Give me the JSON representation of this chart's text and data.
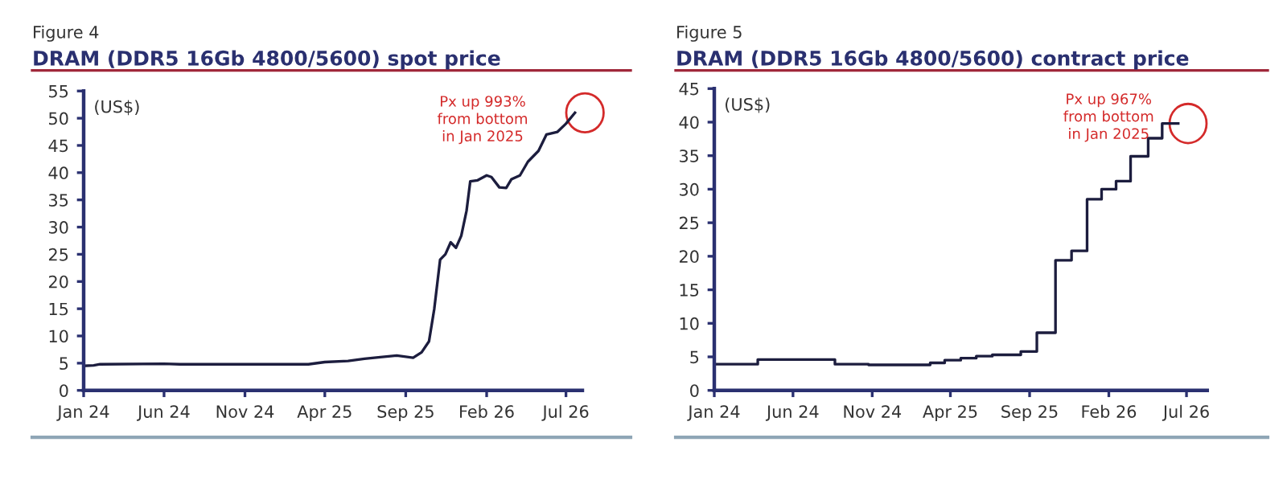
{
  "chart_data": [
    {
      "type": "line",
      "subtitle": "Figure 4",
      "title": "DRAM (DDR5 16Gb 4800/5600) spot price",
      "ylabel": "(US$)",
      "annotations": [
        "Px up 993%\nfrom bottom\nin Jan 2025"
      ],
      "xlim": [
        "2024-01-01",
        "2026-08-01"
      ],
      "ylim": [
        0,
        55
      ],
      "yticks": [
        0,
        5,
        10,
        15,
        20,
        25,
        30,
        35,
        40,
        45,
        50,
        55
      ],
      "xticks": [
        {
          "value": "2024-01",
          "label": "Jan 24"
        },
        {
          "value": "2024-06",
          "label": "Jun 24"
        },
        {
          "value": "2024-11",
          "label": "Nov 24"
        },
        {
          "value": "2025-04",
          "label": "Apr 25"
        },
        {
          "value": "2025-09",
          "label": "Sep 25"
        },
        {
          "value": "2026-02",
          "label": "Feb 26"
        },
        {
          "value": "2026-07",
          "label": "Jul 26"
        }
      ],
      "grid": false,
      "legend": false,
      "series": [
        {
          "color": "#1c1d3e",
          "x": [
            "2024-01-01",
            "2024-01-20",
            "2024-02-01",
            "2024-06-01",
            "2024-07-01",
            "2024-11-01",
            "2025-03-01",
            "2025-04-01",
            "2025-05-15",
            "2025-06-15",
            "2025-07-15",
            "2025-08-15",
            "2025-09-15",
            "2025-10-01",
            "2025-10-15",
            "2025-10-25",
            "2025-11-05",
            "2025-11-15",
            "2025-11-25",
            "2025-12-05",
            "2025-12-15",
            "2025-12-25",
            "2026-01-01",
            "2026-01-15",
            "2026-02-01",
            "2026-02-10",
            "2026-02-25",
            "2026-03-10",
            "2026-03-20",
            "2026-04-05",
            "2026-04-20",
            "2026-05-10",
            "2026-05-25",
            "2026-06-15",
            "2026-07-01",
            "2026-07-18"
          ],
          "values": [
            4.5,
            4.6,
            4.8,
            4.9,
            4.8,
            4.8,
            4.8,
            5.2,
            5.4,
            5.8,
            6.1,
            6.4,
            6.0,
            7.0,
            9.0,
            15,
            24,
            25,
            27.2,
            26.2,
            28.4,
            33,
            38.4,
            38.6,
            39.5,
            39.2,
            37.3,
            37.2,
            38.8,
            39.5,
            42,
            44,
            47,
            47.5,
            49,
            51
          ]
        }
      ]
    },
    {
      "type": "step",
      "subtitle": "Figure 5",
      "title": "DRAM (DDR5 16Gb 4800/5600) contract price",
      "ylabel": "(US$)",
      "annotations": [
        "Px up 967%\nfrom bottom\nin Jan 2025"
      ],
      "xlim": [
        "2024-01-01",
        "2026-08-10"
      ],
      "ylim": [
        0,
        45
      ],
      "yticks": [
        0,
        5,
        10,
        15,
        20,
        25,
        30,
        35,
        40,
        45
      ],
      "xticks": [
        {
          "value": "2024-01",
          "label": "Jan 24"
        },
        {
          "value": "2024-06",
          "label": "Jun 24"
        },
        {
          "value": "2024-11",
          "label": "Nov 24"
        },
        {
          "value": "2025-04",
          "label": "Apr 25"
        },
        {
          "value": "2025-09",
          "label": "Sep 25"
        },
        {
          "value": "2026-02",
          "label": "Feb 26"
        },
        {
          "value": "2026-07",
          "label": "Jul 26"
        }
      ],
      "grid": false,
      "legend": false,
      "series": [
        {
          "color": "#1c1d3e",
          "x": [
            "2024-01-01",
            "2024-03-25",
            "2024-08-21",
            "2024-10-25",
            "2025-02-21",
            "2025-03-21",
            "2025-04-21",
            "2025-05-21",
            "2025-06-21",
            "2025-08-15",
            "2025-09-15",
            "2025-10-21",
            "2025-11-21",
            "2025-12-21",
            "2026-01-18",
            "2026-02-15",
            "2026-03-15",
            "2026-04-18",
            "2026-05-15",
            "2026-06-15"
          ],
          "values": [
            3.9,
            4.6,
            3.9,
            3.8,
            4.1,
            4.5,
            4.8,
            5.1,
            5.3,
            5.8,
            8.6,
            19.4,
            20.8,
            28.5,
            30.0,
            31.2,
            34.9,
            37.6,
            39.8,
            39.8
          ]
        }
      ]
    }
  ]
}
